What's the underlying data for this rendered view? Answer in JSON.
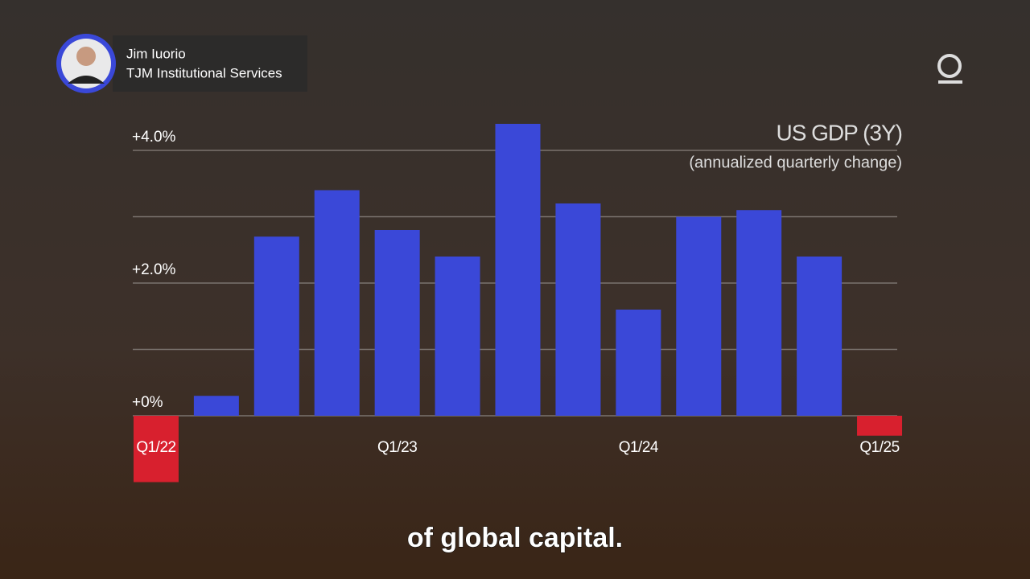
{
  "overlay": {
    "name": "Jim Iuorio",
    "organization": "TJM Institutional Services",
    "caption": "of global capital."
  },
  "chart_data": {
    "type": "bar",
    "title": "US GDP (3Y)",
    "subtitle": "(annualized quarterly change)",
    "categories": [
      "Q1/22",
      null,
      null,
      null,
      "Q1/23",
      null,
      null,
      null,
      "Q1/24",
      null,
      null,
      null,
      "Q1/25"
    ],
    "values": [
      -1.0,
      0.3,
      2.7,
      3.4,
      2.8,
      2.4,
      4.4,
      3.2,
      1.6,
      3.0,
      3.1,
      2.4,
      -0.3
    ],
    "color": "#3a48d8",
    "negative_color": "#d8202e",
    "ylim": [
      -1.2,
      4.6
    ],
    "yticks": [
      {
        "value": 0,
        "label": "+0%"
      },
      {
        "value": 1,
        "label": null
      },
      {
        "value": 2,
        "label": "+2.0%"
      },
      {
        "value": 3,
        "label": null
      },
      {
        "value": 4,
        "label": "+4.0%"
      }
    ],
    "grid": true
  }
}
